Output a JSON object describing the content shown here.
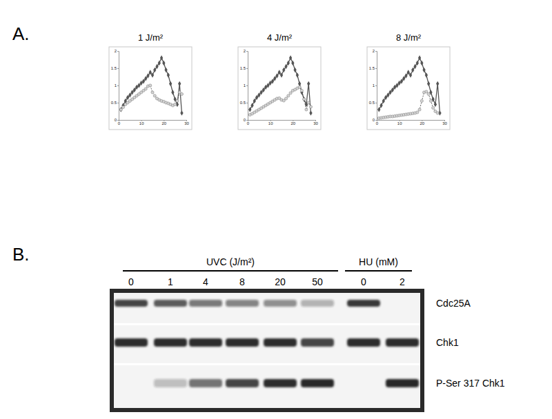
{
  "panels": {
    "a": "A.",
    "b": "B."
  },
  "chart_data": [
    {
      "type": "line",
      "title": "1 J/m²",
      "x": [
        1,
        2,
        3,
        4,
        5,
        6,
        7,
        8,
        9,
        10,
        11,
        12,
        13,
        14,
        15,
        16,
        17,
        18,
        19,
        20,
        21,
        22,
        23,
        24,
        25,
        26,
        27,
        28
      ],
      "xlim": [
        0,
        30
      ],
      "xticks": [
        0,
        10,
        20,
        30
      ],
      "ylim": [
        0,
        2
      ],
      "yticks": [
        0,
        0.5,
        1,
        1.5,
        2
      ],
      "grid": false,
      "series": [
        {
          "color": "#555555",
          "marker": "diamond",
          "line_style": "solid",
          "values": [
            0.3,
            0.42,
            0.55,
            0.65,
            0.72,
            0.8,
            0.87,
            0.95,
            1.0,
            1.07,
            1.12,
            1.2,
            1.28,
            1.38,
            1.3,
            1.45,
            1.55,
            1.65,
            1.8,
            1.65,
            1.45,
            1.3,
            1.05,
            0.8,
            0.6,
            0.45,
            1.05,
            0.2
          ]
        },
        {
          "color": "#d3d3d3",
          "marker": "circle",
          "line_style": "dashed",
          "values": [
            0.3,
            0.37,
            0.45,
            0.5,
            0.55,
            0.6,
            0.65,
            0.7,
            0.75,
            0.8,
            0.85,
            0.9,
            0.98,
            1.0,
            0.8,
            0.7,
            0.62,
            0.58,
            0.55,
            0.53,
            0.5,
            0.48,
            0.45,
            0.42,
            0.45,
            0.55,
            0.8,
            0.75
          ]
        }
      ]
    },
    {
      "type": "line",
      "title": "4 J/m²",
      "x": [
        1,
        2,
        3,
        4,
        5,
        6,
        7,
        8,
        9,
        10,
        11,
        12,
        13,
        14,
        15,
        16,
        17,
        18,
        19,
        20,
        21,
        22,
        23,
        24,
        25,
        26,
        27,
        28
      ],
      "xlim": [
        0,
        30
      ],
      "xticks": [
        0,
        10,
        20,
        30
      ],
      "ylim": [
        0,
        2
      ],
      "yticks": [
        0,
        0.5,
        1,
        1.5,
        2
      ],
      "grid": false,
      "series": [
        {
          "color": "#555555",
          "marker": "diamond",
          "line_style": "solid",
          "values": [
            0.3,
            0.42,
            0.55,
            0.65,
            0.72,
            0.8,
            0.87,
            0.95,
            1.0,
            1.07,
            1.12,
            1.2,
            1.28,
            1.38,
            1.3,
            1.45,
            1.55,
            1.65,
            1.8,
            1.65,
            1.45,
            1.3,
            1.05,
            0.8,
            0.6,
            0.45,
            1.05,
            0.2
          ]
        },
        {
          "color": "#d3d3d3",
          "marker": "circle",
          "line_style": "dashed",
          "values": [
            0.15,
            0.18,
            0.22,
            0.26,
            0.3,
            0.34,
            0.38,
            0.42,
            0.46,
            0.5,
            0.54,
            0.58,
            0.62,
            0.63,
            0.58,
            0.56,
            0.62,
            0.7,
            0.78,
            0.85,
            0.88,
            0.92,
            0.95,
            0.85,
            0.6,
            0.3,
            0.5,
            0.38
          ]
        }
      ]
    },
    {
      "type": "line",
      "title": "8 J/m²",
      "x": [
        1,
        2,
        3,
        4,
        5,
        6,
        7,
        8,
        9,
        10,
        11,
        12,
        13,
        14,
        15,
        16,
        17,
        18,
        19,
        20,
        21,
        22,
        23,
        24,
        25,
        26,
        27,
        28
      ],
      "xlim": [
        0,
        30
      ],
      "xticks": [
        0,
        10,
        20,
        30
      ],
      "ylim": [
        0,
        2
      ],
      "yticks": [
        0,
        0.5,
        1,
        1.5,
        2
      ],
      "grid": false,
      "series": [
        {
          "color": "#555555",
          "marker": "diamond",
          "line_style": "solid",
          "values": [
            0.3,
            0.42,
            0.55,
            0.65,
            0.72,
            0.8,
            0.87,
            0.95,
            1.0,
            1.07,
            1.12,
            1.2,
            1.28,
            1.38,
            1.3,
            1.45,
            1.55,
            1.65,
            1.8,
            1.65,
            1.45,
            1.3,
            1.05,
            0.8,
            0.6,
            0.45,
            1.05,
            0.2
          ]
        },
        {
          "color": "#d3d3d3",
          "marker": "circle",
          "line_style": "dashed",
          "values": [
            0.05,
            0.06,
            0.07,
            0.08,
            0.09,
            0.1,
            0.1,
            0.11,
            0.12,
            0.13,
            0.14,
            0.15,
            0.16,
            0.17,
            0.18,
            0.19,
            0.2,
            0.22,
            0.3,
            0.55,
            0.8,
            0.82,
            0.75,
            0.55,
            0.35,
            0.25,
            0.2,
            null
          ]
        }
      ]
    }
  ],
  "blot": {
    "groups": [
      {
        "label": "UVC (J/m²)",
        "lanes": [
          0,
          1,
          4,
          8,
          20,
          50
        ]
      },
      {
        "label": "HU (mM)",
        "lanes": [
          0,
          2
        ]
      }
    ],
    "rows": [
      {
        "label": "Cdc25A",
        "intensity": [
          0.8,
          0.7,
          0.55,
          0.5,
          0.45,
          0.3,
          0.85,
          0
        ]
      },
      {
        "label": "Chk1",
        "intensity": [
          0.9,
          0.9,
          0.9,
          0.9,
          0.9,
          0.8,
          0.9,
          0.9
        ]
      },
      {
        "label": "P-Ser 317 Chk1",
        "intensity": [
          0,
          0.25,
          0.6,
          0.8,
          0.9,
          0.95,
          0,
          0.95
        ]
      }
    ]
  }
}
